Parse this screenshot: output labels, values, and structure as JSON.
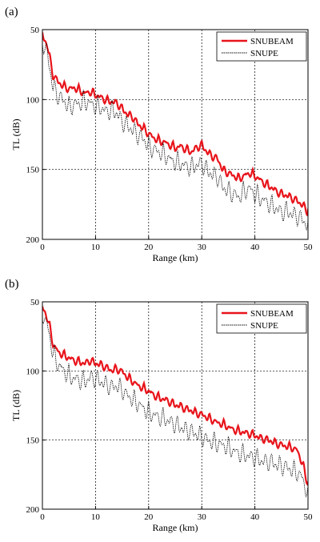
{
  "chart_data": [
    {
      "type": "line",
      "panel_label": "(a)",
      "xlabel": "Range  (km)",
      "ylabel": "TL  (dB)",
      "xlim": [
        0,
        50
      ],
      "ylim": [
        50,
        200
      ],
      "y_reversed": true,
      "grid": true,
      "legend_position": "top-right",
      "x_ticks": [
        "0",
        "10",
        "20",
        "30",
        "40",
        "50"
      ],
      "y_ticks": [
        "50",
        "100",
        "150",
        "200"
      ],
      "series": [
        {
          "name": "SNUBEAM",
          "color": "#e8141b",
          "style": "solid",
          "x": [
            0,
            0.5,
            1,
            1.5,
            2,
            3,
            4,
            5,
            6,
            7,
            8,
            9,
            10,
            11,
            12,
            13,
            14,
            15,
            16,
            17,
            18,
            19,
            20,
            21,
            22,
            23,
            24,
            25,
            26,
            27,
            28,
            29,
            30,
            31,
            32,
            33,
            34,
            35,
            36,
            37,
            38,
            39,
            40,
            41,
            42,
            43,
            44,
            45,
            46,
            47,
            48,
            49,
            50
          ],
          "y": [
            52,
            55,
            60,
            70,
            80,
            85,
            88,
            90,
            89,
            91,
            93,
            92,
            94,
            96,
            98,
            99,
            100,
            104,
            108,
            110,
            115,
            118,
            122,
            125,
            127,
            128,
            130,
            132,
            131,
            133,
            135,
            132,
            130,
            135,
            138,
            140,
            148,
            150,
            152,
            154,
            152,
            150,
            152,
            155,
            158,
            160,
            163,
            165,
            166,
            168,
            170,
            173,
            178
          ]
        },
        {
          "name": "SNUPE",
          "color": "#000000",
          "style": "dotted",
          "x": [
            0,
            0.5,
            1,
            1.5,
            2,
            3,
            4,
            5,
            6,
            7,
            8,
            9,
            10,
            11,
            12,
            13,
            14,
            15,
            16,
            17,
            18,
            19,
            20,
            21,
            22,
            23,
            24,
            25,
            26,
            27,
            28,
            29,
            30,
            31,
            32,
            33,
            34,
            35,
            36,
            37,
            38,
            39,
            40,
            41,
            42,
            43,
            44,
            45,
            46,
            47,
            48,
            49,
            50
          ],
          "y": [
            52,
            58,
            62,
            75,
            85,
            92,
            95,
            100,
            98,
            97,
            96,
            97,
            99,
            100,
            103,
            102,
            104,
            110,
            113,
            116,
            120,
            122,
            128,
            130,
            132,
            134,
            137,
            139,
            140,
            142,
            143,
            141,
            140,
            145,
            148,
            150,
            157,
            160,
            162,
            164,
            160,
            158,
            162,
            165,
            167,
            170,
            172,
            175,
            174,
            176,
            178,
            180,
            185
          ]
        }
      ]
    },
    {
      "type": "line",
      "panel_label": "(b)",
      "xlabel": "Range  (km)",
      "ylabel": "TL  (dB)",
      "xlim": [
        0,
        50
      ],
      "ylim": [
        50,
        200
      ],
      "y_reversed": true,
      "grid": true,
      "legend_position": "top-right",
      "x_ticks": [
        "0",
        "10",
        "20",
        "30",
        "40",
        "50"
      ],
      "y_ticks": [
        "50",
        "100",
        "150",
        "200"
      ],
      "series": [
        {
          "name": "SNUBEAM",
          "color": "#e8141b",
          "style": "solid",
          "x": [
            0,
            0.5,
            1,
            1.5,
            2,
            3,
            4,
            5,
            6,
            7,
            8,
            9,
            10,
            11,
            12,
            13,
            14,
            15,
            16,
            17,
            18,
            19,
            20,
            21,
            22,
            23,
            24,
            25,
            26,
            27,
            28,
            29,
            30,
            31,
            32,
            33,
            34,
            35,
            36,
            37,
            38,
            39,
            40,
            41,
            42,
            43,
            44,
            45,
            46,
            47,
            48,
            49,
            50
          ],
          "y": [
            52,
            55,
            60,
            68,
            78,
            84,
            86,
            88,
            90,
            91,
            92,
            90,
            92,
            93,
            95,
            97,
            96,
            98,
            102,
            105,
            108,
            110,
            112,
            115,
            117,
            118,
            120,
            122,
            123,
            125,
            126,
            128,
            129,
            131,
            133,
            135,
            136,
            138,
            140,
            141,
            142,
            143,
            144,
            146,
            147,
            148,
            150,
            151,
            152,
            153,
            155,
            165,
            180
          ]
        },
        {
          "name": "SNUPE",
          "color": "#000000",
          "style": "dotted",
          "x": [
            0,
            0.5,
            1,
            1.5,
            2,
            3,
            4,
            5,
            6,
            7,
            8,
            9,
            10,
            11,
            12,
            13,
            14,
            15,
            16,
            17,
            18,
            19,
            20,
            21,
            22,
            23,
            24,
            25,
            26,
            27,
            28,
            29,
            30,
            31,
            32,
            33,
            34,
            35,
            36,
            37,
            38,
            39,
            40,
            41,
            42,
            43,
            44,
            45,
            46,
            47,
            48,
            49,
            50
          ],
          "y": [
            52,
            58,
            62,
            72,
            82,
            90,
            94,
            98,
            100,
            101,
            102,
            99,
            100,
            102,
            104,
            106,
            105,
            108,
            112,
            115,
            118,
            121,
            125,
            126,
            128,
            129,
            131,
            133,
            135,
            137,
            138,
            140,
            142,
            144,
            146,
            147,
            148,
            150,
            152,
            154,
            155,
            156,
            157,
            159,
            160,
            160,
            162,
            163,
            164,
            166,
            168,
            172,
            185
          ]
        }
      ]
    }
  ]
}
